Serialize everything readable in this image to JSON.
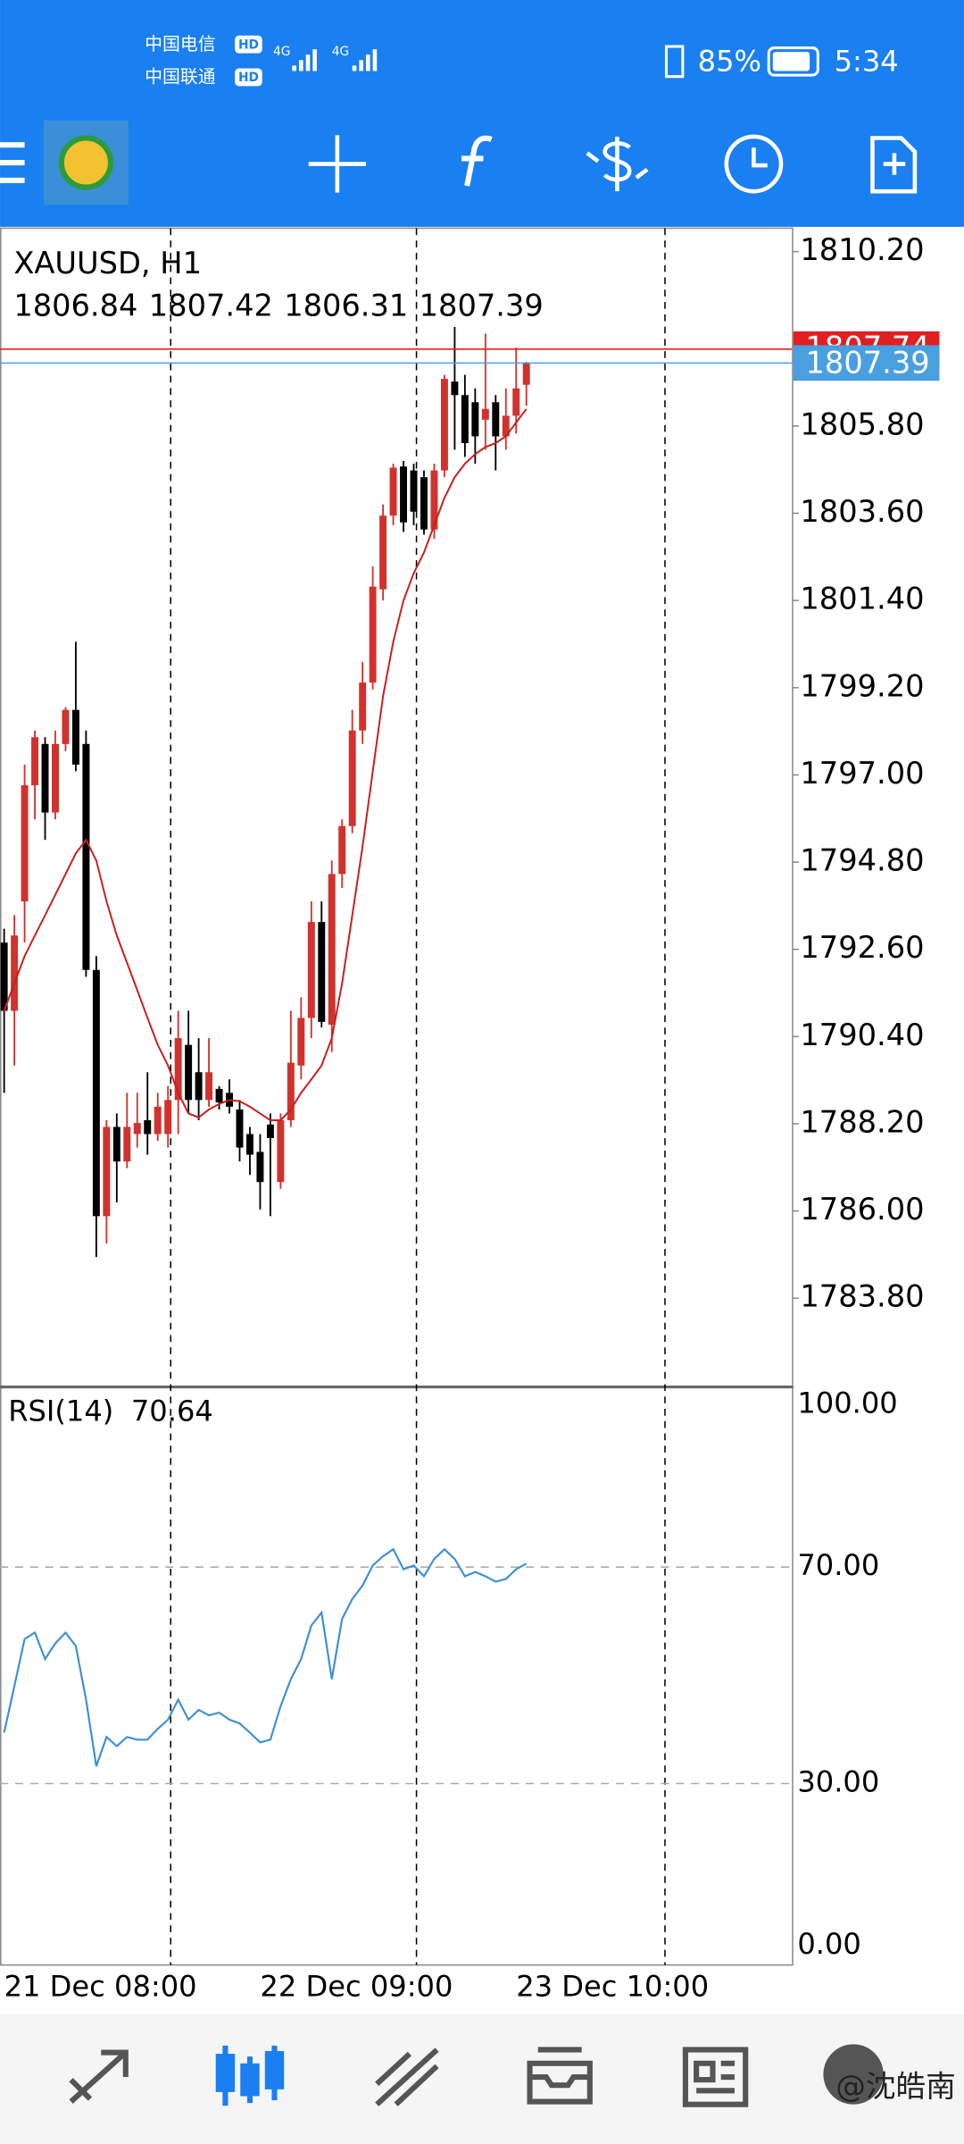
{
  "status_bar": {
    "carrier_1": "中国电信",
    "carrier_2": "中国联通",
    "hd": "HD",
    "network": "4G",
    "battery": "85%",
    "time": "5:34"
  },
  "watermark": "@沈皓南",
  "chart_data": [
    {
      "type": "candlestick",
      "title": "XAUUSD, H1",
      "up_color": "#d1322d",
      "down_color": "#000000",
      "categories": [
        "21 Dec 08:00",
        null,
        null,
        null,
        null,
        null,
        null,
        null,
        null,
        null,
        null,
        null,
        null,
        null,
        null,
        null,
        null,
        null,
        null,
        null,
        null,
        null,
        null,
        null,
        null,
        "22 Dec 09:00",
        null,
        null,
        null,
        null,
        null,
        null,
        null,
        null,
        null,
        null,
        null,
        null,
        null,
        null,
        null,
        null,
        null,
        null,
        null,
        null,
        null,
        null,
        null,
        null,
        "23 Dec 10:00",
        null
      ],
      "open": [
        1792.77,
        1791.05,
        1793.81,
        1796.74,
        1797.78,
        1796.05,
        1797.78,
        1798.64,
        1797.78,
        1792.08,
        1785.87,
        1788.12,
        1787.25,
        1787.94,
        1788.29,
        1787.94,
        1787.94,
        1788.8,
        1790.19,
        1789.5,
        1788.8,
        1789.08,
        1788.98,
        1788.56,
        1787.94,
        1787.49,
        1788.18,
        1786.73,
        1788.29,
        1789.67,
        1790.87,
        1793.29,
        1790.7,
        1794.5,
        1795.71,
        1798.12,
        1799.33,
        1801.68,
        1803.54,
        1804.78,
        1804.68,
        1804.51,
        1803.19,
        1804.68,
        1806.92,
        1806.58,
        1806.4,
        1805.96,
        1806.4,
        1805.54,
        1806.06,
        1806.84
      ],
      "high": [
        1793.12,
        1793.46,
        1797.26,
        1798.12,
        1797.95,
        1798.12,
        1798.71,
        1800.36,
        1798.12,
        1792.43,
        1788.29,
        1788.46,
        1788.98,
        1788.98,
        1789.5,
        1788.98,
        1789.15,
        1791.05,
        1791.05,
        1790.36,
        1790.36,
        1789.15,
        1789.32,
        1788.8,
        1788.12,
        1787.94,
        1788.46,
        1788.46,
        1791.05,
        1791.39,
        1793.81,
        1793.81,
        1794.84,
        1795.88,
        1798.64,
        1799.85,
        1802.26,
        1803.82,
        1804.85,
        1804.92,
        1804.85,
        1804.68,
        1804.85,
        1807.09,
        1808.3,
        1807.09,
        1806.75,
        1808.13,
        1806.58,
        1806.75,
        1807.78,
        1807.42
      ],
      "low": [
        1788.98,
        1789.67,
        1792.77,
        1795.88,
        1795.36,
        1795.88,
        1797.6,
        1797.09,
        1791.91,
        1784.84,
        1785.18,
        1786.22,
        1787.08,
        1787.6,
        1787.42,
        1787.77,
        1787.6,
        1787.94,
        1788.46,
        1788.29,
        1788.63,
        1788.56,
        1788.46,
        1787.25,
        1786.91,
        1786.04,
        1785.87,
        1786.56,
        1788.12,
        1789.32,
        1790.36,
        1790.63,
        1790.01,
        1794.15,
        1795.53,
        1797.78,
        1799.16,
        1801.4,
        1803.3,
        1803.13,
        1803.3,
        1803.06,
        1802.95,
        1804.51,
        1805.2,
        1805.02,
        1804.85,
        1805.2,
        1804.68,
        1805.2,
        1805.61,
        1806.31
      ],
      "close": [
        1791.05,
        1792.95,
        1796.74,
        1797.95,
        1796.05,
        1797.78,
        1798.64,
        1797.26,
        1792.08,
        1785.87,
        1788.12,
        1787.25,
        1788.12,
        1788.22,
        1787.94,
        1788.63,
        1788.8,
        1790.36,
        1788.8,
        1788.8,
        1789.5,
        1788.74,
        1788.63,
        1787.6,
        1787.42,
        1786.73,
        1787.84,
        1788.29,
        1789.74,
        1790.87,
        1793.29,
        1790.77,
        1794.5,
        1795.71,
        1798.12,
        1799.33,
        1801.75,
        1803.54,
        1804.75,
        1803.37,
        1803.64,
        1803.19,
        1804.68,
        1806.99,
        1806.58,
        1805.37,
        1805.54,
        1806.23,
        1805.54,
        1806.06,
        1806.75,
        1807.39
      ],
      "ma": {
        "color": "#c8201e",
        "values": [
          1791.05,
          1791.74,
          1792.43,
          1792.95,
          1793.46,
          1793.98,
          1794.5,
          1795.02,
          1795.36,
          1794.84,
          1793.81,
          1792.95,
          1792.26,
          1791.57,
          1790.87,
          1790.19,
          1789.67,
          1788.98,
          1788.46,
          1788.36,
          1788.56,
          1788.7,
          1788.8,
          1788.77,
          1788.63,
          1788.46,
          1788.29,
          1788.29,
          1788.56,
          1788.98,
          1789.32,
          1789.67,
          1790.36,
          1791.74,
          1793.46,
          1795.19,
          1797.09,
          1798.98,
          1800.36,
          1801.4,
          1802.09,
          1802.61,
          1803.3,
          1803.99,
          1804.51,
          1804.85,
          1805.09,
          1805.27,
          1805.37,
          1805.54,
          1805.89,
          1806.23
        ]
      },
      "ask": {
        "value": 1807.74,
        "label": "1807.74",
        "color": "#e02020"
      },
      "bid_color": "#4a9fe0",
      "ylim": [
        1781.63,
        1810.79
      ],
      "yticks": [
        {
          "value": 1810.2,
          "label": "1810.20"
        },
        {
          "value": 1805.8,
          "label": "1805.80"
        },
        {
          "value": 1803.6,
          "label": "1803.60"
        },
        {
          "value": 1801.4,
          "label": "1801.40"
        },
        {
          "value": 1799.2,
          "label": "1799.20"
        },
        {
          "value": 1797,
          "label": "1797.00"
        },
        {
          "value": 1794.8,
          "label": "1794.80"
        },
        {
          "value": 1792.6,
          "label": "1792.60"
        },
        {
          "value": 1790.4,
          "label": "1790.40"
        },
        {
          "value": 1788.2,
          "label": "1788.20"
        },
        {
          "value": 1786,
          "label": "1786.00"
        },
        {
          "value": 1783.8,
          "label": "1783.80"
        }
      ]
    },
    {
      "type": "line",
      "title": "RSI(14)",
      "color": "#3d8fd1",
      "values": [
        39.4,
        48.0,
        56.7,
        57.9,
        53.0,
        55.9,
        57.9,
        55.4,
        45.5,
        33.2,
        38.6,
        36.9,
        38.6,
        38.1,
        38.1,
        40.1,
        41.8,
        45.5,
        41.8,
        43.6,
        42.6,
        43.1,
        41.8,
        41.1,
        39.4,
        37.6,
        38.1,
        44.3,
        49.3,
        53.0,
        59.2,
        61.6,
        49.3,
        60.4,
        64.1,
        66.6,
        70.3,
        72.0,
        73.3,
        69.6,
        70.3,
        68.3,
        71.5,
        73.3,
        71.5,
        68.3,
        69.1,
        68.3,
        67.3,
        67.8,
        69.6,
        70.64
      ],
      "ylim": [
        0,
        100
      ],
      "yticks": [
        {
          "value": 100,
          "label": "100.00"
        },
        {
          "value": 70,
          "label": "70.00"
        },
        {
          "value": 30,
          "label": "30.00"
        },
        {
          "value": 0,
          "label": "0.00"
        }
      ]
    }
  ]
}
